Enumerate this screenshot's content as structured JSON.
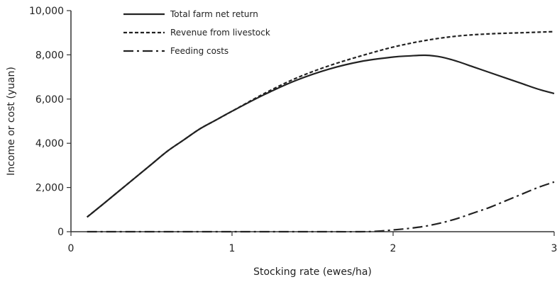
{
  "chart_data": {
    "type": "line",
    "title": "",
    "xlabel": "Stocking rate (ewes/ha)",
    "ylabel": "Income or cost (yuan)",
    "xlim": [
      0,
      3
    ],
    "ylim": [
      0,
      10000
    ],
    "x_ticks": [
      0,
      1,
      2,
      3
    ],
    "y_ticks": [
      0,
      2000,
      4000,
      6000,
      8000,
      10000
    ],
    "x_tick_labels": [
      "0",
      "1",
      "2",
      "3"
    ],
    "y_tick_labels": [
      "0",
      "2,000",
      "4,000",
      "6,000",
      "8,000",
      "10,000"
    ],
    "grid": false,
    "legend_position": "top-left",
    "series": [
      {
        "name": "Total farm net return",
        "style": "solid",
        "color": "#222222",
        "x": [
          0.1,
          0.2,
          0.3,
          0.4,
          0.5,
          0.6,
          0.7,
          0.8,
          0.9,
          1.0,
          1.2,
          1.4,
          1.6,
          1.8,
          2.0,
          2.1,
          2.2,
          2.3,
          2.4,
          2.5,
          2.6,
          2.7,
          2.8,
          2.9,
          3.0
        ],
        "y": [
          660,
          1250,
          1850,
          2450,
          3050,
          3650,
          4150,
          4650,
          5050,
          5450,
          6200,
          6850,
          7350,
          7700,
          7900,
          7950,
          7980,
          7900,
          7700,
          7450,
          7200,
          6950,
          6700,
          6450,
          6250
        ]
      },
      {
        "name": "Revenue from livestock",
        "style": "dashed",
        "color": "#222222",
        "x": [
          0.1,
          0.2,
          0.3,
          0.4,
          0.5,
          0.6,
          0.7,
          0.8,
          0.9,
          1.0,
          1.2,
          1.4,
          1.6,
          1.8,
          2.0,
          2.2,
          2.4,
          2.6,
          2.8,
          3.0
        ],
        "y": [
          660,
          1250,
          1850,
          2450,
          3050,
          3650,
          4150,
          4650,
          5050,
          5450,
          6250,
          6950,
          7500,
          7950,
          8350,
          8650,
          8850,
          8950,
          9000,
          9050
        ]
      },
      {
        "name": "Feeding costs",
        "style": "dashdot",
        "color": "#222222",
        "x": [
          0.1,
          0.5,
          1.0,
          1.5,
          1.8,
          1.9,
          2.0,
          2.1,
          2.2,
          2.3,
          2.4,
          2.5,
          2.6,
          2.7,
          2.8,
          2.9,
          3.0
        ],
        "y": [
          0,
          0,
          0,
          0,
          0,
          20,
          80,
          150,
          250,
          400,
          600,
          850,
          1100,
          1400,
          1700,
          2000,
          2250
        ]
      }
    ]
  }
}
